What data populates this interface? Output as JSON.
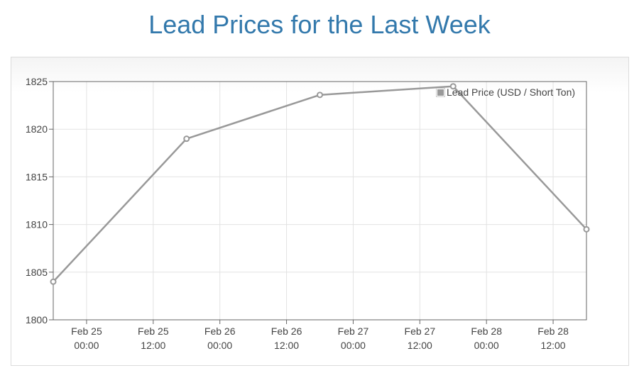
{
  "page": {
    "title": "Lead Prices for the Last Week"
  },
  "chart_data": {
    "type": "line",
    "title": "",
    "xlabel": "",
    "ylabel": "",
    "x_ticks": [
      [
        "Feb 25",
        "00:00"
      ],
      [
        "Feb 25",
        "12:00"
      ],
      [
        "Feb 26",
        "00:00"
      ],
      [
        "Feb 26",
        "12:00"
      ],
      [
        "Feb 27",
        "00:00"
      ],
      [
        "Feb 27",
        "12:00"
      ],
      [
        "Feb 28",
        "00:00"
      ],
      [
        "Feb 28",
        "12:00"
      ]
    ],
    "x_tick_values": [
      0,
      12,
      24,
      36,
      48,
      60,
      72,
      84
    ],
    "xlim": [
      -6,
      90
    ],
    "ylim": [
      1800,
      1825
    ],
    "y_ticks": [
      1800,
      1805,
      1810,
      1815,
      1820,
      1825
    ],
    "grid": true,
    "legend_position": "top-right",
    "series": [
      {
        "name": "Lead Price (USD / Short Ton)",
        "color": "#999999",
        "x": [
          -6,
          18,
          42,
          66,
          90
        ],
        "y": [
          1804,
          1819,
          1823.6,
          1824.5,
          1809.5
        ]
      }
    ]
  }
}
